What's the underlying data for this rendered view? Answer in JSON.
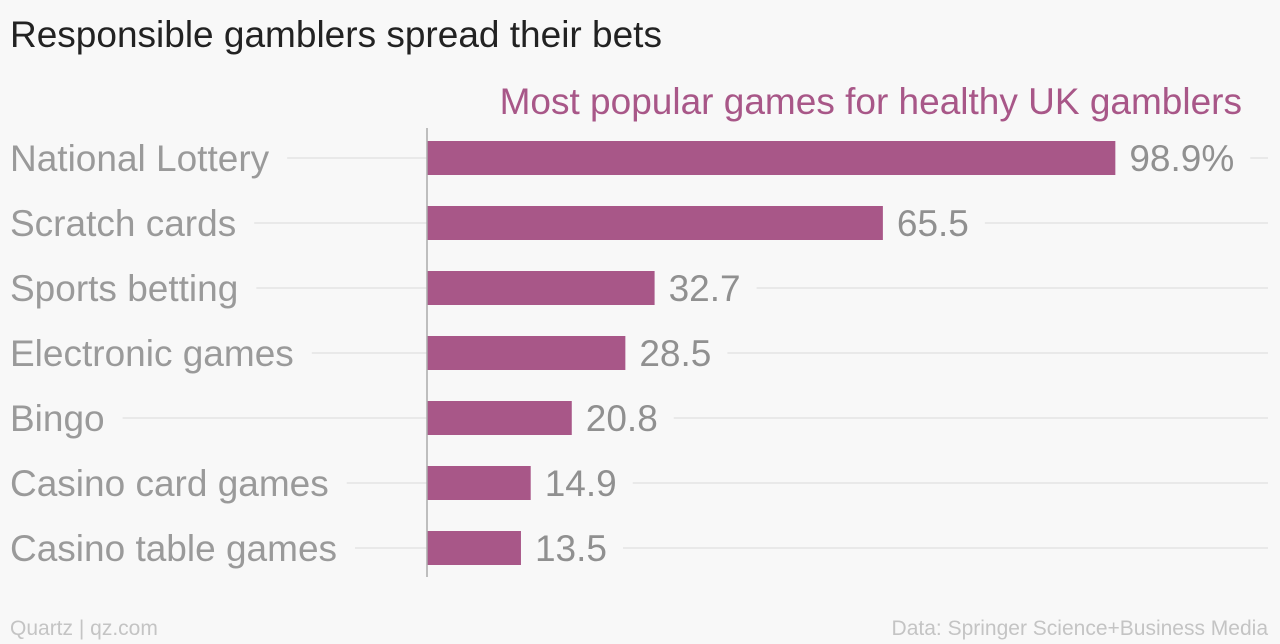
{
  "title": "Responsible gamblers spread their bets",
  "footer": {
    "source_left": "Quartz | qz.com",
    "source_right": "Data: Springer Science+Business Media"
  },
  "colors": {
    "bar": "#a85788",
    "subtitle": "#a85788",
    "label": "#9a9a9a",
    "value": "#909090",
    "grid": "#e4e4e4",
    "axis": "#aaaaaa"
  },
  "chart_data": {
    "type": "bar",
    "orientation": "horizontal",
    "subtitle": "Most popular games for healthy UK gamblers",
    "categories": [
      "National Lottery",
      "Scratch cards",
      "Sports betting",
      "Electronic games",
      "Bingo",
      "Casino card games",
      "Casino table games"
    ],
    "values": [
      98.9,
      65.5,
      32.7,
      28.5,
      20.8,
      14.9,
      13.5
    ],
    "value_labels": [
      "98.9%",
      "65.5",
      "32.7",
      "28.5",
      "20.8",
      "14.9",
      "13.5"
    ],
    "xlim": [
      0,
      100
    ],
    "grid": true
  }
}
